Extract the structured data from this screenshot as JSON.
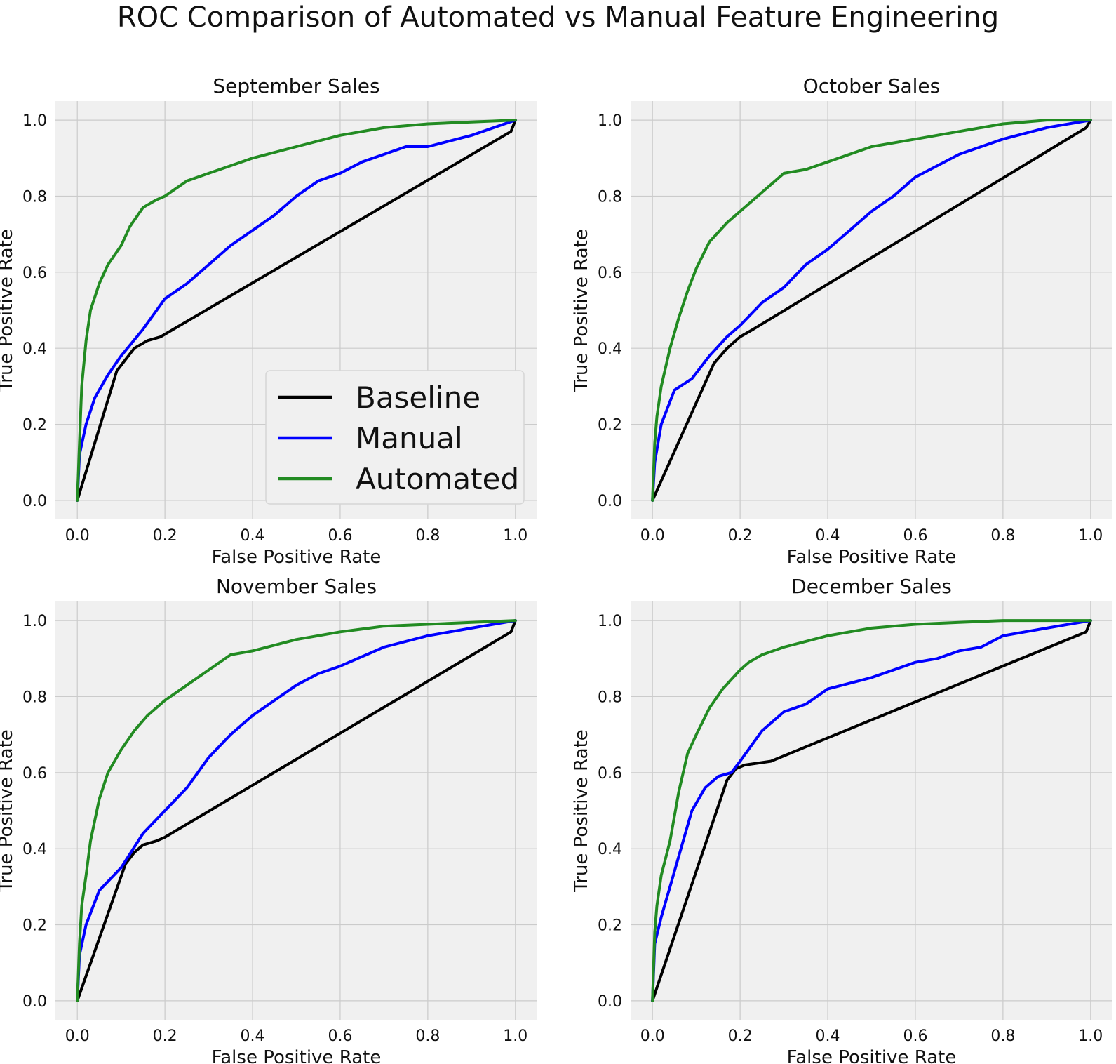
{
  "title": "ROC Comparison of Automated vs Manual Feature Engineering",
  "colors": {
    "background": "#ffffff",
    "plot_background": "#f0f0f0",
    "grid": "#cbcbcb",
    "Baseline": "#000000",
    "Manual": "#0000ff",
    "Automated": "#228b22"
  },
  "chart_data": [
    {
      "type": "line",
      "title": "September Sales",
      "xlabel": "False Positive Rate",
      "ylabel": "True Positive Rate",
      "xlim": [
        -0.05,
        1.05
      ],
      "ylim": [
        -0.05,
        1.05
      ],
      "xticks": [
        "0.0",
        "0.2",
        "0.4",
        "0.6",
        "0.8",
        "1.0"
      ],
      "yticks": [
        "0.0",
        "0.2",
        "0.4",
        "0.6",
        "0.8",
        "1.0"
      ],
      "grid": true,
      "legend": {
        "location": "lower-right",
        "entries": [
          "Baseline",
          "Manual",
          "Automated"
        ]
      },
      "series": [
        {
          "name": "Baseline",
          "points": [
            [
              0,
              0
            ],
            [
              0.09,
              0.34
            ],
            [
              0.11,
              0.37
            ],
            [
              0.13,
              0.4
            ],
            [
              0.16,
              0.42
            ],
            [
              0.19,
              0.43
            ],
            [
              0.99,
              0.97
            ],
            [
              1,
              1
            ]
          ]
        },
        {
          "name": "Manual",
          "points": [
            [
              0,
              0
            ],
            [
              0.005,
              0.12
            ],
            [
              0.02,
              0.2
            ],
            [
              0.04,
              0.27
            ],
            [
              0.07,
              0.33
            ],
            [
              0.1,
              0.38
            ],
            [
              0.15,
              0.45
            ],
            [
              0.2,
              0.53
            ],
            [
              0.25,
              0.57
            ],
            [
              0.3,
              0.62
            ],
            [
              0.35,
              0.67
            ],
            [
              0.4,
              0.71
            ],
            [
              0.45,
              0.75
            ],
            [
              0.5,
              0.8
            ],
            [
              0.55,
              0.84
            ],
            [
              0.6,
              0.86
            ],
            [
              0.65,
              0.89
            ],
            [
              0.7,
              0.91
            ],
            [
              0.75,
              0.93
            ],
            [
              0.8,
              0.93
            ],
            [
              0.9,
              0.96
            ],
            [
              1,
              1
            ]
          ]
        },
        {
          "name": "Automated",
          "points": [
            [
              0,
              0
            ],
            [
              0.005,
              0.15
            ],
            [
              0.01,
              0.3
            ],
            [
              0.02,
              0.42
            ],
            [
              0.03,
              0.5
            ],
            [
              0.05,
              0.57
            ],
            [
              0.07,
              0.62
            ],
            [
              0.1,
              0.67
            ],
            [
              0.12,
              0.72
            ],
            [
              0.15,
              0.77
            ],
            [
              0.18,
              0.79
            ],
            [
              0.2,
              0.8
            ],
            [
              0.25,
              0.84
            ],
            [
              0.3,
              0.86
            ],
            [
              0.35,
              0.88
            ],
            [
              0.4,
              0.9
            ],
            [
              0.5,
              0.93
            ],
            [
              0.6,
              0.96
            ],
            [
              0.7,
              0.98
            ],
            [
              0.8,
              0.99
            ],
            [
              0.9,
              0.995
            ],
            [
              1,
              1
            ]
          ]
        }
      ]
    },
    {
      "type": "line",
      "title": "October Sales",
      "xlabel": "False Positive Rate",
      "ylabel": "True Positive Rate",
      "xlim": [
        -0.05,
        1.05
      ],
      "ylim": [
        -0.05,
        1.05
      ],
      "xticks": [
        "0.0",
        "0.2",
        "0.4",
        "0.6",
        "0.8",
        "1.0"
      ],
      "yticks": [
        "0.0",
        "0.2",
        "0.4",
        "0.6",
        "0.8",
        "1.0"
      ],
      "grid": true,
      "series": [
        {
          "name": "Baseline",
          "points": [
            [
              0,
              0
            ],
            [
              0.14,
              0.36
            ],
            [
              0.17,
              0.4
            ],
            [
              0.2,
              0.43
            ],
            [
              0.23,
              0.45
            ],
            [
              0.99,
              0.98
            ],
            [
              1,
              1
            ]
          ]
        },
        {
          "name": "Manual",
          "points": [
            [
              0,
              0
            ],
            [
              0.005,
              0.1
            ],
            [
              0.02,
              0.2
            ],
            [
              0.05,
              0.29
            ],
            [
              0.09,
              0.32
            ],
            [
              0.13,
              0.38
            ],
            [
              0.17,
              0.43
            ],
            [
              0.2,
              0.46
            ],
            [
              0.25,
              0.52
            ],
            [
              0.3,
              0.56
            ],
            [
              0.35,
              0.62
            ],
            [
              0.4,
              0.66
            ],
            [
              0.45,
              0.71
            ],
            [
              0.5,
              0.76
            ],
            [
              0.55,
              0.8
            ],
            [
              0.6,
              0.85
            ],
            [
              0.65,
              0.88
            ],
            [
              0.7,
              0.91
            ],
            [
              0.8,
              0.95
            ],
            [
              0.9,
              0.98
            ],
            [
              1,
              1
            ]
          ]
        },
        {
          "name": "Automated",
          "points": [
            [
              0,
              0
            ],
            [
              0.005,
              0.15
            ],
            [
              0.01,
              0.22
            ],
            [
              0.02,
              0.3
            ],
            [
              0.04,
              0.4
            ],
            [
              0.06,
              0.48
            ],
            [
              0.08,
              0.55
            ],
            [
              0.1,
              0.61
            ],
            [
              0.13,
              0.68
            ],
            [
              0.17,
              0.73
            ],
            [
              0.2,
              0.76
            ],
            [
              0.25,
              0.81
            ],
            [
              0.3,
              0.86
            ],
            [
              0.35,
              0.87
            ],
            [
              0.4,
              0.89
            ],
            [
              0.5,
              0.93
            ],
            [
              0.6,
              0.95
            ],
            [
              0.7,
              0.97
            ],
            [
              0.8,
              0.99
            ],
            [
              0.9,
              1.0
            ],
            [
              1,
              1
            ]
          ]
        }
      ]
    },
    {
      "type": "line",
      "title": "November Sales",
      "xlabel": "False Positive Rate",
      "ylabel": "True Positive Rate",
      "xlim": [
        -0.05,
        1.05
      ],
      "ylim": [
        -0.05,
        1.05
      ],
      "xticks": [
        "0.0",
        "0.2",
        "0.4",
        "0.6",
        "0.8",
        "1.0"
      ],
      "yticks": [
        "0.0",
        "0.2",
        "0.4",
        "0.6",
        "0.8",
        "1.0"
      ],
      "grid": true,
      "series": [
        {
          "name": "Baseline",
          "points": [
            [
              0,
              0
            ],
            [
              0.11,
              0.36
            ],
            [
              0.13,
              0.39
            ],
            [
              0.15,
              0.41
            ],
            [
              0.18,
              0.42
            ],
            [
              0.2,
              0.43
            ],
            [
              0.99,
              0.97
            ],
            [
              1,
              1
            ]
          ]
        },
        {
          "name": "Manual",
          "points": [
            [
              0,
              0
            ],
            [
              0.005,
              0.12
            ],
            [
              0.02,
              0.2
            ],
            [
              0.05,
              0.29
            ],
            [
              0.1,
              0.35
            ],
            [
              0.15,
              0.44
            ],
            [
              0.2,
              0.5
            ],
            [
              0.25,
              0.56
            ],
            [
              0.3,
              0.64
            ],
            [
              0.35,
              0.7
            ],
            [
              0.4,
              0.75
            ],
            [
              0.45,
              0.79
            ],
            [
              0.5,
              0.83
            ],
            [
              0.55,
              0.86
            ],
            [
              0.6,
              0.88
            ],
            [
              0.7,
              0.93
            ],
            [
              0.8,
              0.96
            ],
            [
              0.9,
              0.98
            ],
            [
              1,
              1
            ]
          ]
        },
        {
          "name": "Automated",
          "points": [
            [
              0,
              0
            ],
            [
              0.005,
              0.15
            ],
            [
              0.01,
              0.25
            ],
            [
              0.02,
              0.33
            ],
            [
              0.03,
              0.42
            ],
            [
              0.05,
              0.53
            ],
            [
              0.07,
              0.6
            ],
            [
              0.1,
              0.66
            ],
            [
              0.13,
              0.71
            ],
            [
              0.16,
              0.75
            ],
            [
              0.2,
              0.79
            ],
            [
              0.25,
              0.83
            ],
            [
              0.3,
              0.87
            ],
            [
              0.35,
              0.91
            ],
            [
              0.4,
              0.92
            ],
            [
              0.5,
              0.95
            ],
            [
              0.6,
              0.97
            ],
            [
              0.7,
              0.985
            ],
            [
              0.8,
              0.99
            ],
            [
              0.9,
              0.995
            ],
            [
              1,
              1
            ]
          ]
        }
      ]
    },
    {
      "type": "line",
      "title": "December Sales",
      "xlabel": "False Positive Rate",
      "ylabel": "True Positive Rate",
      "xlim": [
        -0.05,
        1.05
      ],
      "ylim": [
        -0.05,
        1.05
      ],
      "xticks": [
        "0.0",
        "0.2",
        "0.4",
        "0.6",
        "0.8",
        "1.0"
      ],
      "yticks": [
        "0.0",
        "0.2",
        "0.4",
        "0.6",
        "0.8",
        "1.0"
      ],
      "grid": true,
      "series": [
        {
          "name": "Baseline",
          "points": [
            [
              0,
              0
            ],
            [
              0.17,
              0.58
            ],
            [
              0.19,
              0.61
            ],
            [
              0.21,
              0.62
            ],
            [
              0.27,
              0.63
            ],
            [
              0.99,
              0.97
            ],
            [
              1,
              1
            ]
          ]
        },
        {
          "name": "Manual",
          "points": [
            [
              0,
              0
            ],
            [
              0.005,
              0.15
            ],
            [
              0.02,
              0.22
            ],
            [
              0.04,
              0.3
            ],
            [
              0.07,
              0.42
            ],
            [
              0.09,
              0.5
            ],
            [
              0.12,
              0.56
            ],
            [
              0.15,
              0.59
            ],
            [
              0.18,
              0.6
            ],
            [
              0.2,
              0.63
            ],
            [
              0.25,
              0.71
            ],
            [
              0.3,
              0.76
            ],
            [
              0.35,
              0.78
            ],
            [
              0.4,
              0.82
            ],
            [
              0.5,
              0.85
            ],
            [
              0.6,
              0.89
            ],
            [
              0.65,
              0.9
            ],
            [
              0.7,
              0.92
            ],
            [
              0.75,
              0.93
            ],
            [
              0.8,
              0.96
            ],
            [
              0.9,
              0.98
            ],
            [
              1,
              1
            ]
          ]
        },
        {
          "name": "Automated",
          "points": [
            [
              0,
              0
            ],
            [
              0.005,
              0.18
            ],
            [
              0.01,
              0.25
            ],
            [
              0.02,
              0.33
            ],
            [
              0.04,
              0.42
            ],
            [
              0.06,
              0.55
            ],
            [
              0.08,
              0.65
            ],
            [
              0.1,
              0.7
            ],
            [
              0.13,
              0.77
            ],
            [
              0.16,
              0.82
            ],
            [
              0.2,
              0.87
            ],
            [
              0.22,
              0.89
            ],
            [
              0.25,
              0.91
            ],
            [
              0.3,
              0.93
            ],
            [
              0.4,
              0.96
            ],
            [
              0.5,
              0.98
            ],
            [
              0.6,
              0.99
            ],
            [
              0.7,
              0.995
            ],
            [
              0.8,
              1.0
            ],
            [
              1,
              1
            ]
          ]
        }
      ]
    }
  ]
}
